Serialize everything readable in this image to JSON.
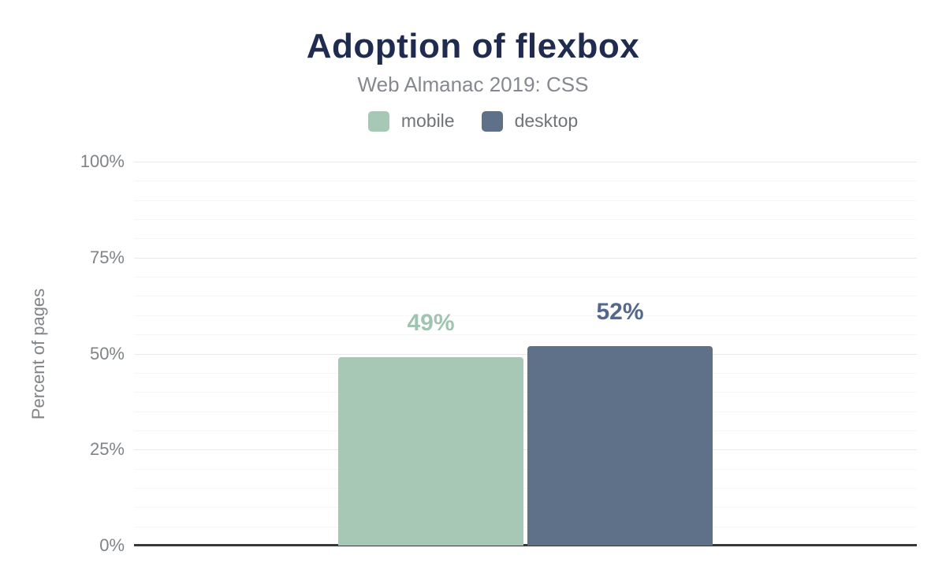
{
  "title": "Adoption of flexbox",
  "subtitle": "Web Almanac 2019: CSS",
  "legend": {
    "items": [
      {
        "label": "mobile",
        "color": "#a6c8b5"
      },
      {
        "label": "desktop",
        "color": "#5f7089"
      }
    ]
  },
  "y_axis": {
    "label": "Percent of pages",
    "ticks": [
      "0%",
      "25%",
      "50%",
      "75%",
      "100%"
    ]
  },
  "chart_data": {
    "type": "bar",
    "title": "Adoption of flexbox",
    "subtitle": "Web Almanac 2019: CSS",
    "categories": [
      "mobile",
      "desktop"
    ],
    "values": [
      49,
      52
    ],
    "value_labels": [
      "49%",
      "52%"
    ],
    "xlabel": "",
    "ylabel": "Percent of pages",
    "ylim": [
      0,
      100
    ],
    "ytick_labels": [
      "0%",
      "25%",
      "50%",
      "75%",
      "100%"
    ],
    "grid_minor_step": 5,
    "grid_major_step": 25,
    "grid": true,
    "legend_position": "top",
    "bar_colors": [
      "#a6c8b5",
      "#5f7089"
    ],
    "value_label_colors": [
      "#9fc4b0",
      "#54688c"
    ],
    "axis_line_color": "#37383a",
    "title_color": "#1f2c50",
    "subtitle_color": "#85898f"
  }
}
